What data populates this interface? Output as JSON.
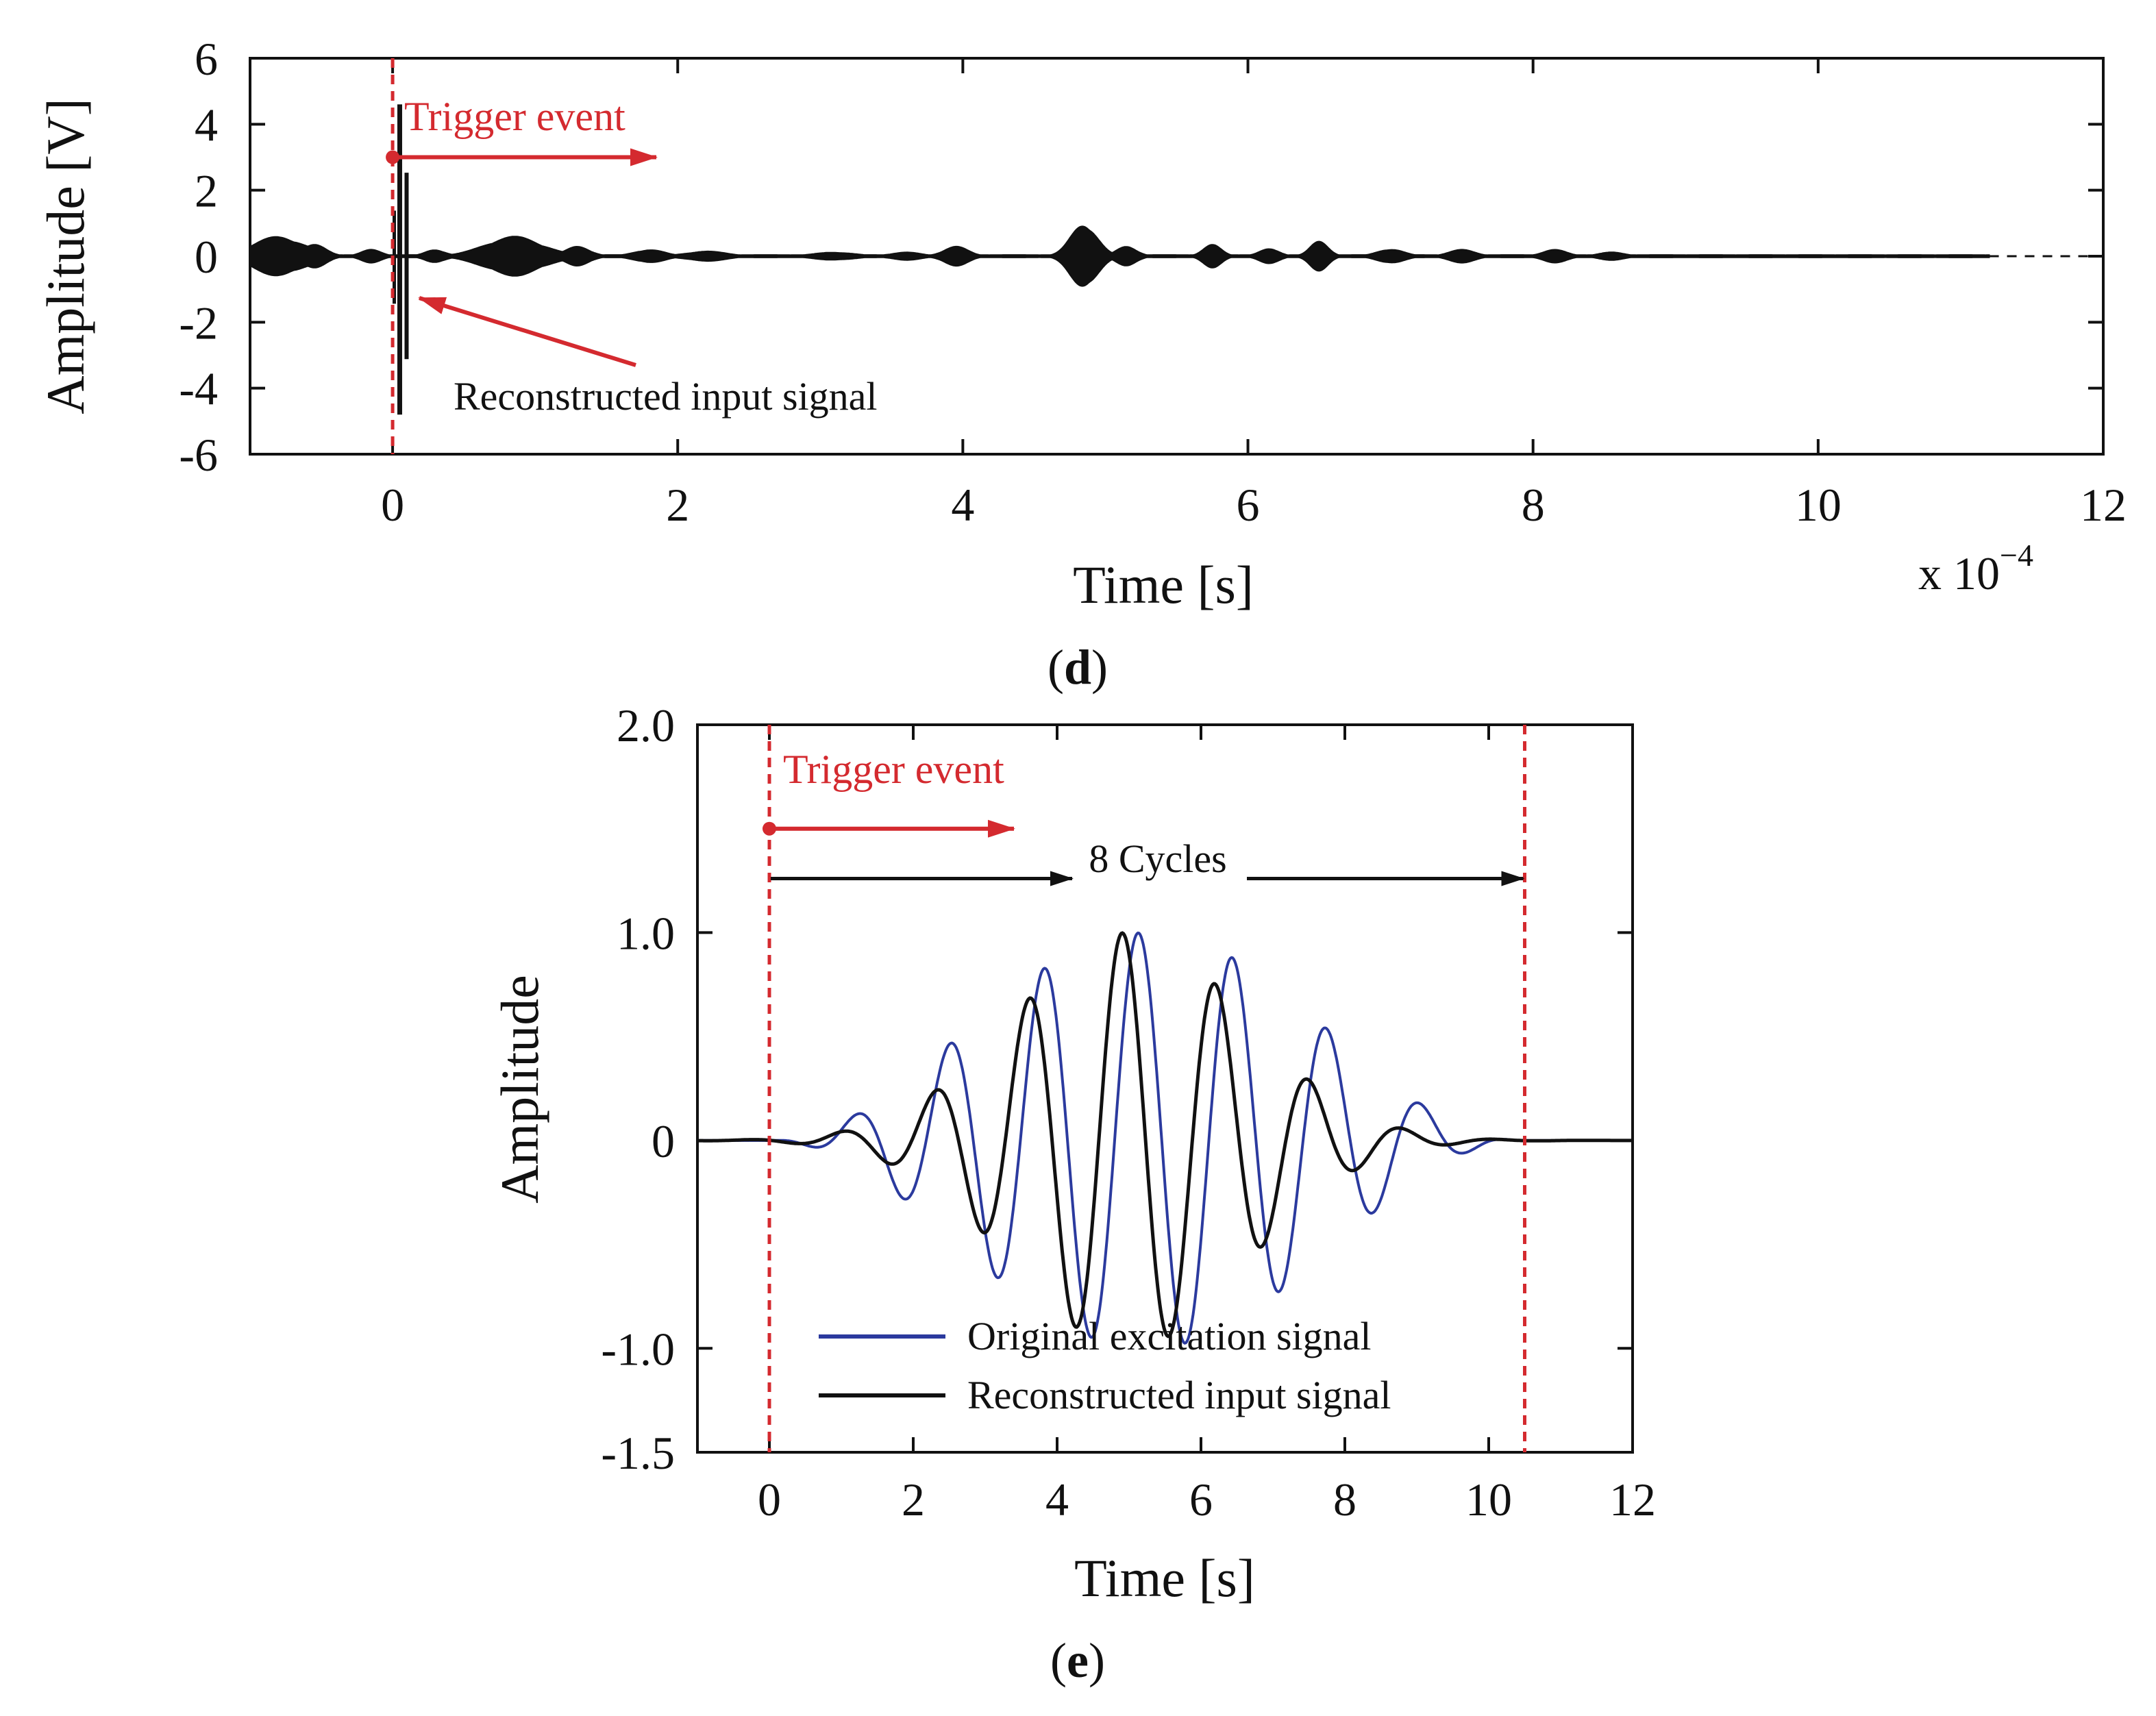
{
  "chart_data": [
    {
      "panel": "(d)",
      "panel_letter": "d",
      "type": "line",
      "xlabel": "Time [s]",
      "ylabel": "Amplitude [V]",
      "x_multiplier": "x 10",
      "x_multiplier_exp": "−4",
      "xlim": [
        -1,
        12
      ],
      "ylim": [
        -6,
        6
      ],
      "xticks": [
        0,
        2,
        4,
        6,
        8,
        10,
        12
      ],
      "yticks": [
        6,
        4,
        2,
        0,
        -2,
        -4,
        -6
      ],
      "trigger_x": 0,
      "data_end_x": 11.2,
      "annotations": {
        "trigger": "Trigger event",
        "signal": "Reconstructed input signal"
      },
      "envelope_bursts": [
        {
          "center": -0.8,
          "width": 0.25,
          "amp": 0.6
        },
        {
          "center": -0.55,
          "width": 0.12,
          "amp": 0.35
        },
        {
          "center": -0.15,
          "width": 0.1,
          "amp": 0.2
        },
        {
          "center": 0.3,
          "width": 0.1,
          "amp": 0.2
        },
        {
          "center": 0.85,
          "width": 0.28,
          "amp": 0.6
        },
        {
          "center": 1.3,
          "width": 0.12,
          "amp": 0.3
        },
        {
          "center": 1.8,
          "width": 0.15,
          "amp": 0.2
        },
        {
          "center": 2.2,
          "width": 0.2,
          "amp": 0.15
        },
        {
          "center": 3.1,
          "width": 0.2,
          "amp": 0.12
        },
        {
          "center": 3.6,
          "width": 0.15,
          "amp": 0.12
        },
        {
          "center": 3.95,
          "width": 0.12,
          "amp": 0.3
        },
        {
          "center": 4.85,
          "width": 0.13,
          "amp": 1.0
        },
        {
          "center": 5.15,
          "width": 0.1,
          "amp": 0.3
        },
        {
          "center": 5.75,
          "width": 0.09,
          "amp": 0.35
        },
        {
          "center": 6.15,
          "width": 0.1,
          "amp": 0.22
        },
        {
          "center": 6.5,
          "width": 0.09,
          "amp": 0.45
        },
        {
          "center": 7.0,
          "width": 0.13,
          "amp": 0.22
        },
        {
          "center": 7.5,
          "width": 0.13,
          "amp": 0.2
        },
        {
          "center": 8.15,
          "width": 0.12,
          "amp": 0.2
        },
        {
          "center": 8.55,
          "width": 0.13,
          "amp": 0.12
        }
      ],
      "input_spike": {
        "x": 0.05,
        "min": -4.8,
        "max": 4.6
      }
    },
    {
      "panel": "(e)",
      "panel_letter": "e",
      "type": "line",
      "xlabel": "Time [s]",
      "ylabel": "Amplitude",
      "xlim": [
        -1,
        12
      ],
      "ylim": [
        -1.5,
        2.0
      ],
      "xticks": [
        0,
        2,
        4,
        6,
        8,
        10,
        12
      ],
      "yticks": [
        {
          "value": 2.0,
          "label": "2.0"
        },
        {
          "value": 1.0,
          "label": "1.0"
        },
        {
          "value": 0,
          "label": "0"
        },
        {
          "value": -1.0,
          "label": "-1.0"
        },
        {
          "value": -1.5,
          "label": "-1.5"
        }
      ],
      "trigger_x": 0,
      "window_end_x": 10.5,
      "cycles_label": "8 Cycles",
      "trigger_label": "Trigger event",
      "series": [
        {
          "name": "Original excitation signal",
          "color": "#2b3a9e",
          "center": 5.2,
          "period": 1.31,
          "phase": 0.35,
          "envelope_sigma": 2.05,
          "x_start": -1,
          "x_end": 12
        },
        {
          "name": "Reconstructed input signal",
          "color": "#111111",
          "center": 5.0,
          "period": 1.3,
          "phase": 0.46,
          "envelope_sigma": 2.25,
          "x_start": -1,
          "x_end": 12
        }
      ],
      "legend_location": "lower-center"
    }
  ],
  "colors": {
    "trigger": "#d42a2f",
    "axis": "#111111"
  }
}
